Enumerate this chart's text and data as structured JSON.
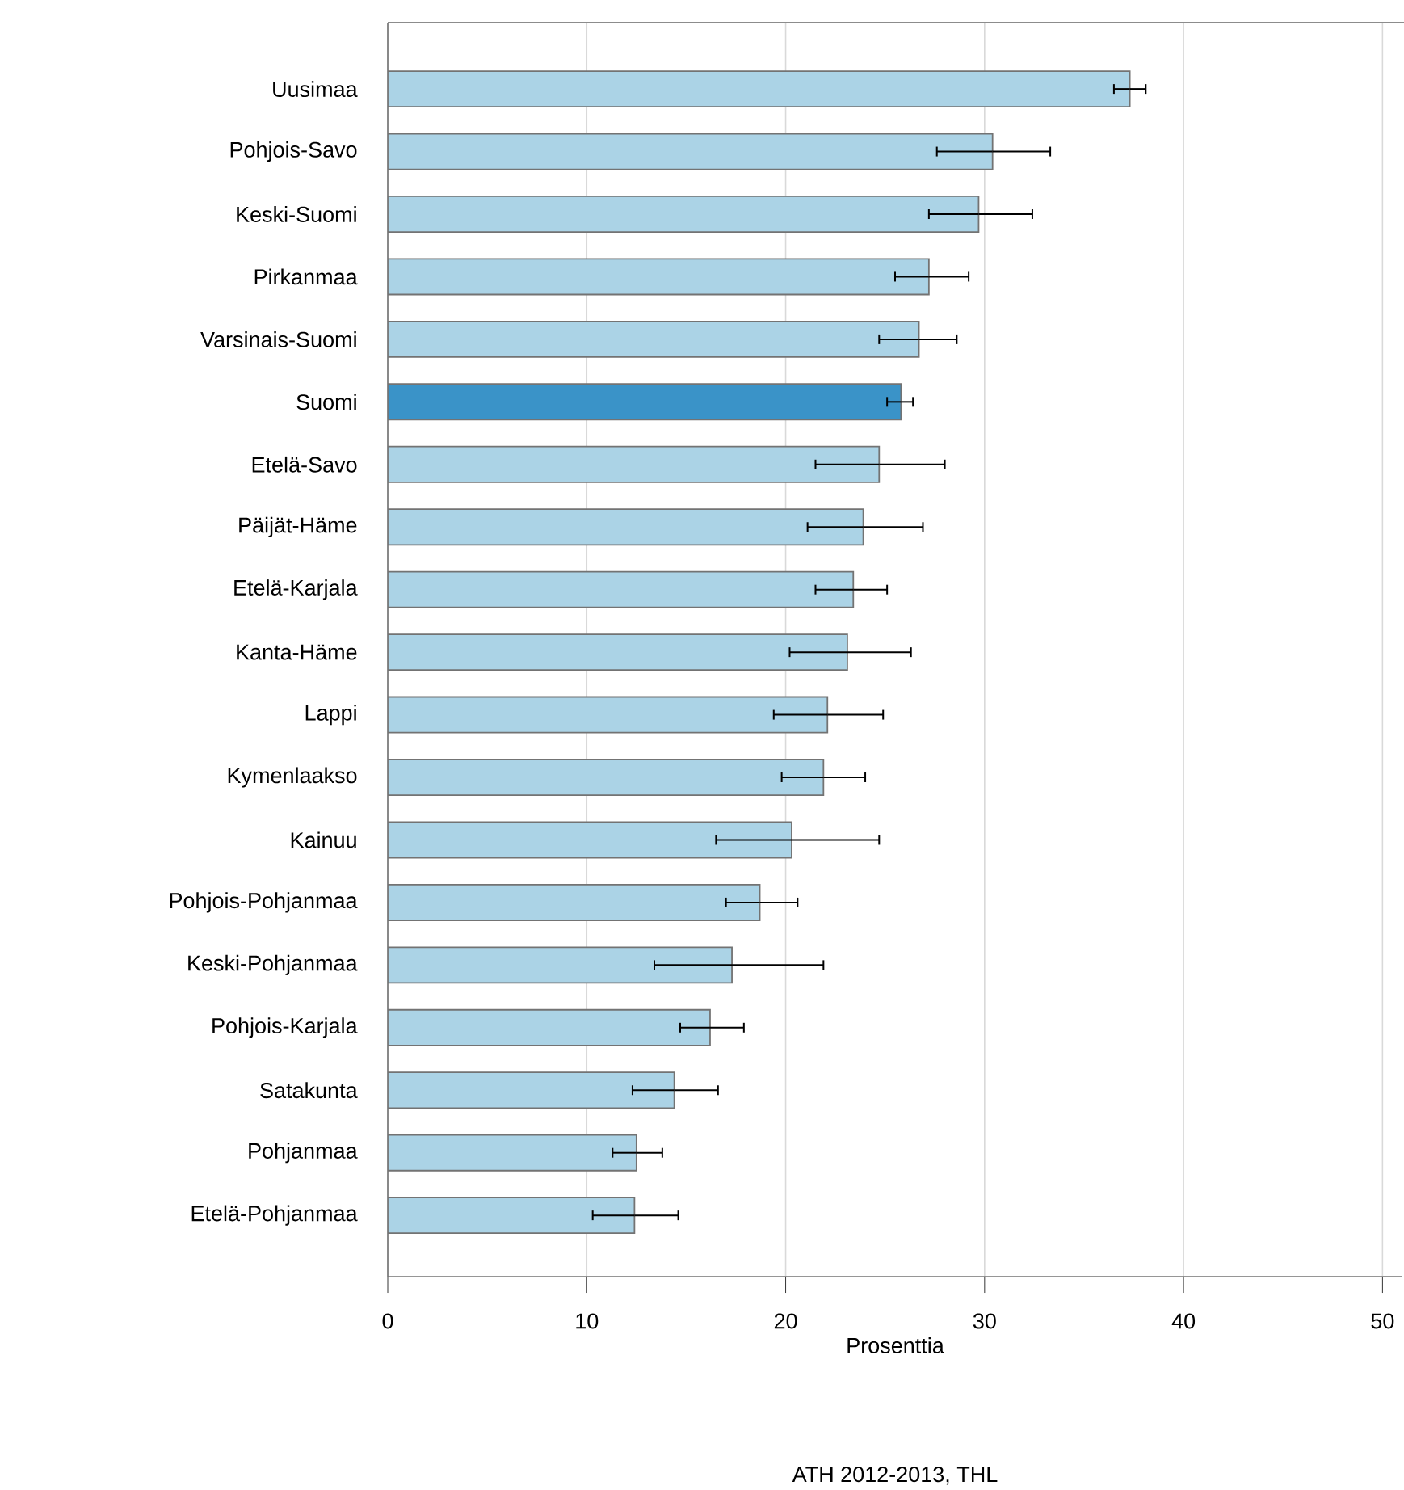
{
  "chart_data": {
    "type": "bar",
    "orientation": "horizontal",
    "categories": [
      "Uusimaa",
      "Pohjois-Savo",
      "Keski-Suomi",
      "Pirkanmaa",
      "Varsinais-Suomi",
      "Suomi",
      "Etelä-Savo",
      "Päijät-Häme",
      "Etelä-Karjala",
      "Kanta-Häme",
      "Lappi",
      "Kymenlaakso",
      "Kainuu",
      "Pohjois-Pohjanmaa",
      "Keski-Pohjanmaa",
      "Pohjois-Karjala",
      "Satakunta",
      "Pohjanmaa",
      "Etelä-Pohjanmaa"
    ],
    "values": [
      37.3,
      30.4,
      29.7,
      27.2,
      26.7,
      25.8,
      24.7,
      23.9,
      23.4,
      23.1,
      22.1,
      21.9,
      20.3,
      18.7,
      17.3,
      16.2,
      14.4,
      12.5,
      12.4
    ],
    "errors": [
      [
        36.5,
        38.1
      ],
      [
        27.6,
        33.3
      ],
      [
        27.2,
        32.4
      ],
      [
        25.5,
        29.2
      ],
      [
        24.7,
        28.6
      ],
      [
        25.1,
        26.4
      ],
      [
        21.5,
        28.0
      ],
      [
        21.1,
        26.9
      ],
      [
        21.5,
        25.1
      ],
      [
        20.2,
        26.3
      ],
      [
        19.4,
        24.9
      ],
      [
        19.8,
        24.0
      ],
      [
        16.5,
        24.7
      ],
      [
        17.0,
        20.6
      ],
      [
        13.4,
        21.9
      ],
      [
        14.7,
        17.9
      ],
      [
        12.3,
        16.6
      ],
      [
        11.3,
        13.8
      ],
      [
        10.3,
        14.6
      ]
    ],
    "colors": [
      "#abd3e6",
      "#abd3e6",
      "#abd3e6",
      "#abd3e6",
      "#abd3e6",
      "#3a93c8",
      "#abd3e6",
      "#abd3e6",
      "#abd3e6",
      "#abd3e6",
      "#abd3e6",
      "#abd3e6",
      "#abd3e6",
      "#abd3e6",
      "#abd3e6",
      "#abd3e6",
      "#abd3e6",
      "#abd3e6",
      "#abd3e6"
    ],
    "xlim": [
      0,
      51
    ],
    "xticks": [
      0,
      10,
      20,
      30,
      40,
      50
    ],
    "xlabel": "Prosenttia",
    "grid": "x",
    "annotations": [
      "ATH 2012-2013, THL"
    ]
  }
}
